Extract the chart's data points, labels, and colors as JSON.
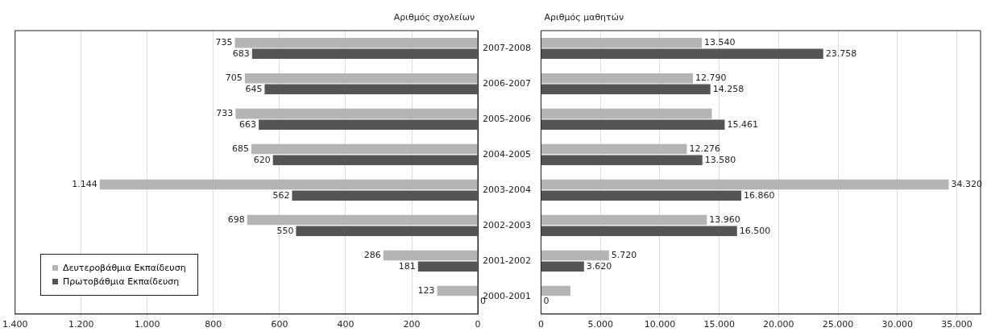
{
  "chart_data": [
    {
      "type": "bar",
      "orientation": "horizontal",
      "title": "Αριθμός σχολείων",
      "categories": [
        "2007-2008",
        "2006-2007",
        "2005-2006",
        "2004-2005",
        "2003-2004",
        "2002-2003",
        "2001-2002",
        "2000-2001"
      ],
      "series": [
        {
          "name": "Δευτεροβάθμια Εκπαίδευση",
          "color": "#b4b4b4",
          "values": [
            735,
            705,
            733,
            685,
            1144,
            698,
            286,
            123
          ],
          "value_labels": [
            "735",
            "705",
            "733",
            "685",
            "1.144",
            "698",
            "286",
            "123"
          ]
        },
        {
          "name": "Πρωτοβάθμια Εκπαίδευση",
          "color": "#555555",
          "values": [
            683,
            645,
            663,
            620,
            562,
            550,
            181,
            0
          ],
          "value_labels": [
            "683",
            "645",
            "663",
            "620",
            "562",
            "550",
            "181",
            "0"
          ]
        }
      ],
      "xlim": [
        1400,
        0
      ],
      "xticks": [
        {
          "value": 1400,
          "label": "1.400"
        },
        {
          "value": 1200,
          "label": "1.200"
        },
        {
          "value": 1000,
          "label": "1.000"
        },
        800,
        600,
        400,
        200,
        0
      ],
      "grid": "x",
      "legend": "bottom left"
    },
    {
      "type": "bar",
      "orientation": "horizontal",
      "title": "Αριθμός μαθητών",
      "categories": [
        null,
        null,
        null,
        null,
        null,
        null,
        null,
        null
      ],
      "series": [
        {
          "color": "#b4b4b4",
          "values": [
            13540,
            12790,
            14380,
            12276,
            34320,
            13960,
            5720,
            2470
          ],
          "value_labels": [
            "13.540",
            "12.790",
            null,
            "12.276",
            "34.320",
            "13.960",
            "5.720",
            null
          ]
        },
        {
          "color": "#555555",
          "values": [
            23758,
            14258,
            15461,
            13580,
            16860,
            16500,
            3620,
            0
          ],
          "value_labels": [
            "23.758",
            "14.258",
            "15.461",
            "13.580",
            "16.860",
            "16.500",
            "3.620",
            "0"
          ]
        }
      ],
      "xlim": [
        0,
        37000
      ],
      "xticks": [
        0,
        {
          "value": 5000,
          "label": "5.000"
        },
        {
          "value": 10000,
          "label": "10.000"
        },
        {
          "value": 15000,
          "label": "15.000"
        },
        {
          "value": 20000,
          "label": "20.000"
        },
        {
          "value": 25000,
          "label": "25.000"
        },
        {
          "value": 30000,
          "label": "30.000"
        },
        {
          "value": 35000,
          "label": "35.000"
        }
      ],
      "grid": "x",
      "tick_labels": "x"
    }
  ]
}
